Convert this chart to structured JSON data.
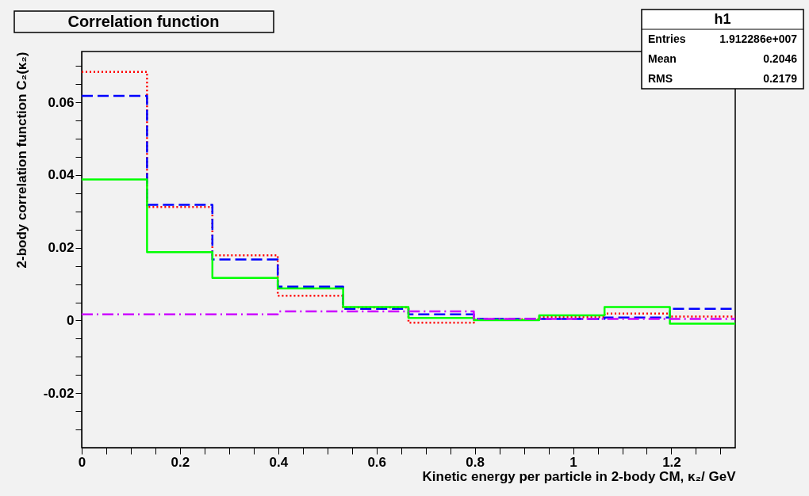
{
  "chart_data": {
    "type": "histogram",
    "title": "Correlation function",
    "xlabel": "Kinetic energy per particle in 2-body CM, κ₂/ GeV",
    "ylabel": "2-body correlation function C₂(κ₂)",
    "bins": [
      0,
      0.133,
      0.266,
      0.399,
      0.532,
      0.665,
      0.798,
      0.931,
      1.064,
      1.197,
      1.33
    ],
    "series": [
      {
        "color": "#ff0000",
        "line_style": "dotted",
        "values": [
          0.0684,
          0.0312,
          0.0179,
          0.0068,
          0.0036,
          -0.0006,
          0.0003,
          0.0009,
          0.0019,
          0.0011
        ]
      },
      {
        "color": "#0000ff",
        "line_style": "dashed",
        "values": [
          0.0618,
          0.0318,
          0.0168,
          0.0093,
          0.0032,
          0.0017,
          0.0004,
          0.0004,
          0.0008,
          0.0032
        ]
      },
      {
        "color": "#00ff00",
        "line_style": "solid",
        "values": [
          0.0388,
          0.0188,
          0.0117,
          0.0088,
          0.0037,
          0.0007,
          0.0001,
          0.0014,
          0.0037,
          -0.0009
        ]
      },
      {
        "color": "#cc00ff",
        "line_style": "dashdot",
        "values": [
          0.0017,
          0.0017,
          0.0017,
          0.0025,
          0.0025,
          0.0025,
          0.0004,
          0.0004,
          0.0004,
          0.0004
        ]
      }
    ],
    "xlim": [
      0,
      1.33
    ],
    "xticks": [
      0,
      {
        "value": 0.05,
        "label": null
      },
      {
        "value": 0.1,
        "label": null
      },
      {
        "value": 0.15,
        "label": null
      },
      0.2,
      {
        "value": 0.25,
        "label": null
      },
      {
        "value": 0.3,
        "label": null
      },
      {
        "value": 0.35,
        "label": null
      },
      0.4,
      {
        "value": 0.45,
        "label": null
      },
      {
        "value": 0.5,
        "label": null
      },
      {
        "value": 0.55,
        "label": null
      },
      0.6,
      {
        "value": 0.65,
        "label": null
      },
      {
        "value": 0.7,
        "label": null
      },
      {
        "value": 0.75,
        "label": null
      },
      0.8,
      {
        "value": 0.85,
        "label": null
      },
      {
        "value": 0.9,
        "label": null
      },
      {
        "value": 0.95,
        "label": null
      },
      1,
      {
        "value": 1.05,
        "label": null
      },
      {
        "value": 1.1,
        "label": null
      },
      {
        "value": 1.15,
        "label": null
      },
      1.2,
      {
        "value": 1.25,
        "label": null
      },
      {
        "value": 1.3,
        "label": null
      }
    ],
    "ylim": [
      -0.035,
      0.074
    ],
    "yticks": [
      {
        "value": -0.03,
        "label": null
      },
      {
        "value": -0.025,
        "label": null
      },
      -0.02,
      {
        "value": -0.015,
        "label": null
      },
      {
        "value": -0.01,
        "label": null
      },
      {
        "value": -0.005,
        "label": null
      },
      0,
      {
        "value": 0.005,
        "label": null
      },
      {
        "value": 0.01,
        "label": null
      },
      {
        "value": 0.015,
        "label": null
      },
      0.02,
      {
        "value": 0.025,
        "label": null
      },
      {
        "value": 0.03,
        "label": null
      },
      {
        "value": 0.035,
        "label": null
      },
      0.04,
      {
        "value": 0.045,
        "label": null
      },
      {
        "value": 0.05,
        "label": null
      },
      {
        "value": 0.055,
        "label": null
      },
      0.06,
      {
        "value": 0.065,
        "label": null
      },
      {
        "value": 0.07,
        "label": null
      }
    ],
    "grid": false,
    "annotations": [
      "h1",
      "Entries",
      "1.912286e+007",
      "Mean",
      "0.2046",
      "RMS",
      "0.2179"
    ]
  }
}
